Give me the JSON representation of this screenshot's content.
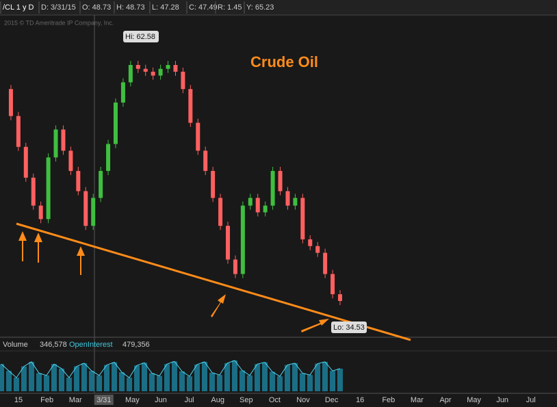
{
  "header": {
    "symbol": "/CL 1 y D",
    "date": "D: 3/31/15",
    "open": "O: 48.73",
    "high": "H: 48.73",
    "low": "L: 47.28",
    "close": "C: 47.49",
    "range": "R: 1.45",
    "y": "Y: 65.23"
  },
  "copyright": "2015 © TD Ameritrade IP Company, Inc.",
  "title": "Crude Oil",
  "hi_label": "Hi: 62.58",
  "lo_label": "Lo: 34.53",
  "prices": [
    58.1,
    55.3,
    52.1,
    48.9,
    46.0,
    44.6,
    51.0,
    53.9,
    51.7,
    49.6,
    47.5,
    43.9,
    46.8,
    49.6,
    52.4,
    56.7,
    58.8,
    60.6,
    60.2,
    59.9,
    59.5,
    60.2,
    60.6,
    59.9,
    58.1,
    54.6,
    51.7,
    49.6,
    46.8,
    43.9,
    40.4,
    38.9,
    46.0,
    46.8,
    45.3,
    46.0,
    49.6,
    47.5,
    46.0,
    46.8,
    42.5,
    41.8,
    41.1,
    38.9,
    36.8,
    36.1
  ],
  "volume_pane": {
    "label": "Volume",
    "volume": "346,578",
    "oi_label": "OpenInterest",
    "oi": "479,356",
    "values": [
      60,
      45,
      30,
      55,
      65,
      40,
      35,
      60,
      50,
      30,
      55,
      62,
      45,
      35,
      58,
      64,
      42,
      30,
      57,
      63,
      40,
      34,
      60,
      66,
      44,
      33,
      59,
      65,
      41,
      36,
      62,
      68,
      46,
      35,
      60,
      64,
      43,
      33,
      58,
      62,
      40,
      36,
      61,
      65,
      45,
      50
    ]
  },
  "x_labels": [
    "15",
    "Feb",
    "Mar",
    "3/31",
    "May",
    "Jun",
    "Jul",
    "Aug",
    "Sep",
    "Oct",
    "Nov",
    "Dec",
    "16",
    "Feb",
    "Mar",
    "Apr",
    "May",
    "Jun",
    "Jul"
  ]
}
